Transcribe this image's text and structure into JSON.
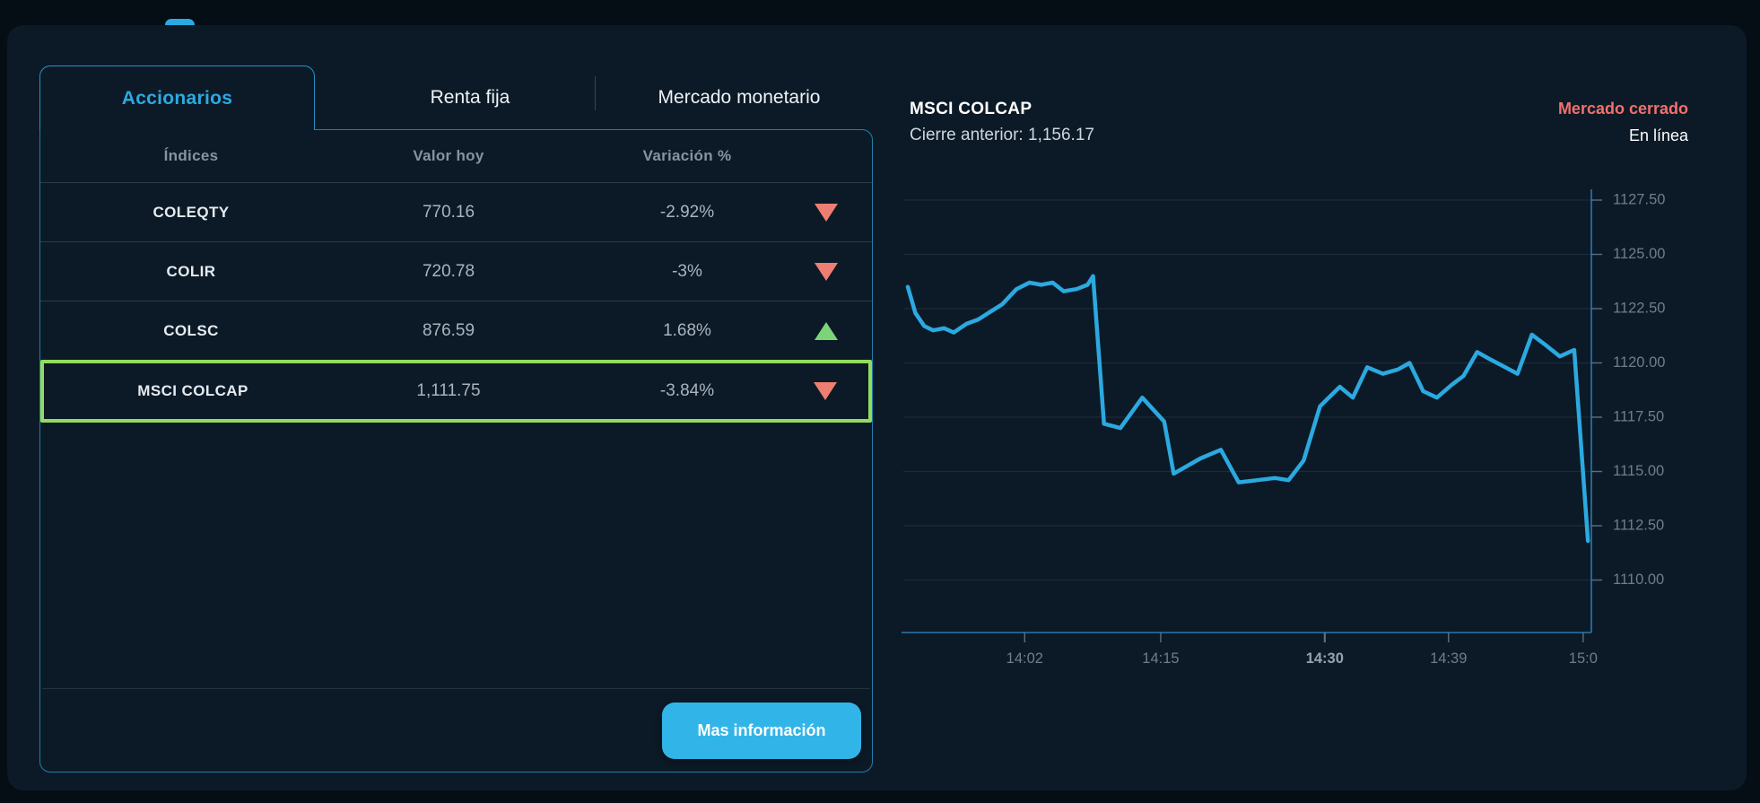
{
  "theme": {
    "page_bg": "#050D15",
    "card_bg": "#0C1A27",
    "accent_cyan": "#2BAAE2",
    "button_bg": "#31B5E8",
    "negative_red": "#EE7E72",
    "positive_green": "#7CD47A",
    "highlight_green": "#93DB5F",
    "market_closed_red": "#F2706D",
    "chart_line": "#2BA9E0"
  },
  "tabs": [
    {
      "label": "Accionarios",
      "active": true
    },
    {
      "label": "Renta fija",
      "active": false
    },
    {
      "label": "Mercado monetario",
      "active": false
    }
  ],
  "table": {
    "headers": [
      "Índices",
      "Valor hoy",
      "Variación %"
    ],
    "rows": [
      {
        "name": "COLEQTY",
        "value": "770.16",
        "change": "-2.92%",
        "direction": "down",
        "highlighted": false
      },
      {
        "name": "COLIR",
        "value": "720.78",
        "change": "-3%",
        "direction": "down",
        "highlighted": false
      },
      {
        "name": "COLSC",
        "value": "876.59",
        "change": "1.68%",
        "direction": "up",
        "highlighted": false
      },
      {
        "name": "MSCI COLCAP",
        "value": "1,111.75",
        "change": "-3.84%",
        "direction": "down",
        "highlighted": true
      }
    ]
  },
  "actions": {
    "more_info_label": "Mas información"
  },
  "detail": {
    "title": "MSCI COLCAP",
    "previous_close_label": "Cierre anterior:",
    "previous_close_value": "1,156.17",
    "market_status": "Mercado cerrado",
    "connection_status": "En línea"
  },
  "chart_data": {
    "type": "line",
    "title": "MSCI COLCAP",
    "legend": "none",
    "grid": "horizontal",
    "y_axis_side": "right",
    "y_ticks": [
      "1127.50",
      "1125.00",
      "1122.50",
      "1120.00",
      "1117.50",
      "1115.00",
      "1112.50",
      "1110.00"
    ],
    "y_range_labeled": [
      1110,
      1127.5
    ],
    "x_ticks": [
      {
        "label": "14:02",
        "pos": 0.171,
        "bold": false
      },
      {
        "label": "14:15",
        "pos": 0.37,
        "bold": false
      },
      {
        "label": "14:30",
        "pos": 0.61,
        "bold": true
      },
      {
        "label": "14:39",
        "pos": 0.791,
        "bold": false
      },
      {
        "label": "15:0",
        "pos": 0.988,
        "bold": false
      }
    ],
    "series": [
      {
        "name": "MSCI COLCAP",
        "color": "#2BA9E0",
        "points": [
          [
            0.0,
            1123.5
          ],
          [
            0.011,
            1122.3
          ],
          [
            0.024,
            1121.7
          ],
          [
            0.037,
            1121.5
          ],
          [
            0.053,
            1121.6
          ],
          [
            0.067,
            1121.4
          ],
          [
            0.086,
            1121.8
          ],
          [
            0.103,
            1122.0
          ],
          [
            0.118,
            1122.3
          ],
          [
            0.138,
            1122.7
          ],
          [
            0.159,
            1123.4
          ],
          [
            0.178,
            1123.7
          ],
          [
            0.195,
            1123.6
          ],
          [
            0.212,
            1123.7
          ],
          [
            0.228,
            1123.3
          ],
          [
            0.247,
            1123.4
          ],
          [
            0.263,
            1123.6
          ],
          [
            0.271,
            1124.0
          ],
          [
            0.287,
            1117.2
          ],
          [
            0.311,
            1117.0
          ],
          [
            0.343,
            1118.4
          ],
          [
            0.375,
            1117.3
          ],
          [
            0.389,
            1114.9
          ],
          [
            0.428,
            1115.6
          ],
          [
            0.458,
            1116.0
          ],
          [
            0.484,
            1114.5
          ],
          [
            0.511,
            1114.6
          ],
          [
            0.537,
            1114.7
          ],
          [
            0.557,
            1114.6
          ],
          [
            0.579,
            1115.5
          ],
          [
            0.603,
            1118.0
          ],
          [
            0.632,
            1118.9
          ],
          [
            0.651,
            1118.4
          ],
          [
            0.672,
            1119.8
          ],
          [
            0.695,
            1119.5
          ],
          [
            0.717,
            1119.7
          ],
          [
            0.734,
            1120.0
          ],
          [
            0.754,
            1118.7
          ],
          [
            0.774,
            1118.4
          ],
          [
            0.796,
            1119.0
          ],
          [
            0.813,
            1119.4
          ],
          [
            0.833,
            1120.5
          ],
          [
            0.85,
            1120.2
          ],
          [
            0.868,
            1119.9
          ],
          [
            0.892,
            1119.5
          ],
          [
            0.913,
            1121.3
          ],
          [
            0.934,
            1120.8
          ],
          [
            0.954,
            1120.3
          ],
          [
            0.975,
            1120.6
          ],
          [
            0.995,
            1111.8
          ]
        ]
      }
    ]
  }
}
